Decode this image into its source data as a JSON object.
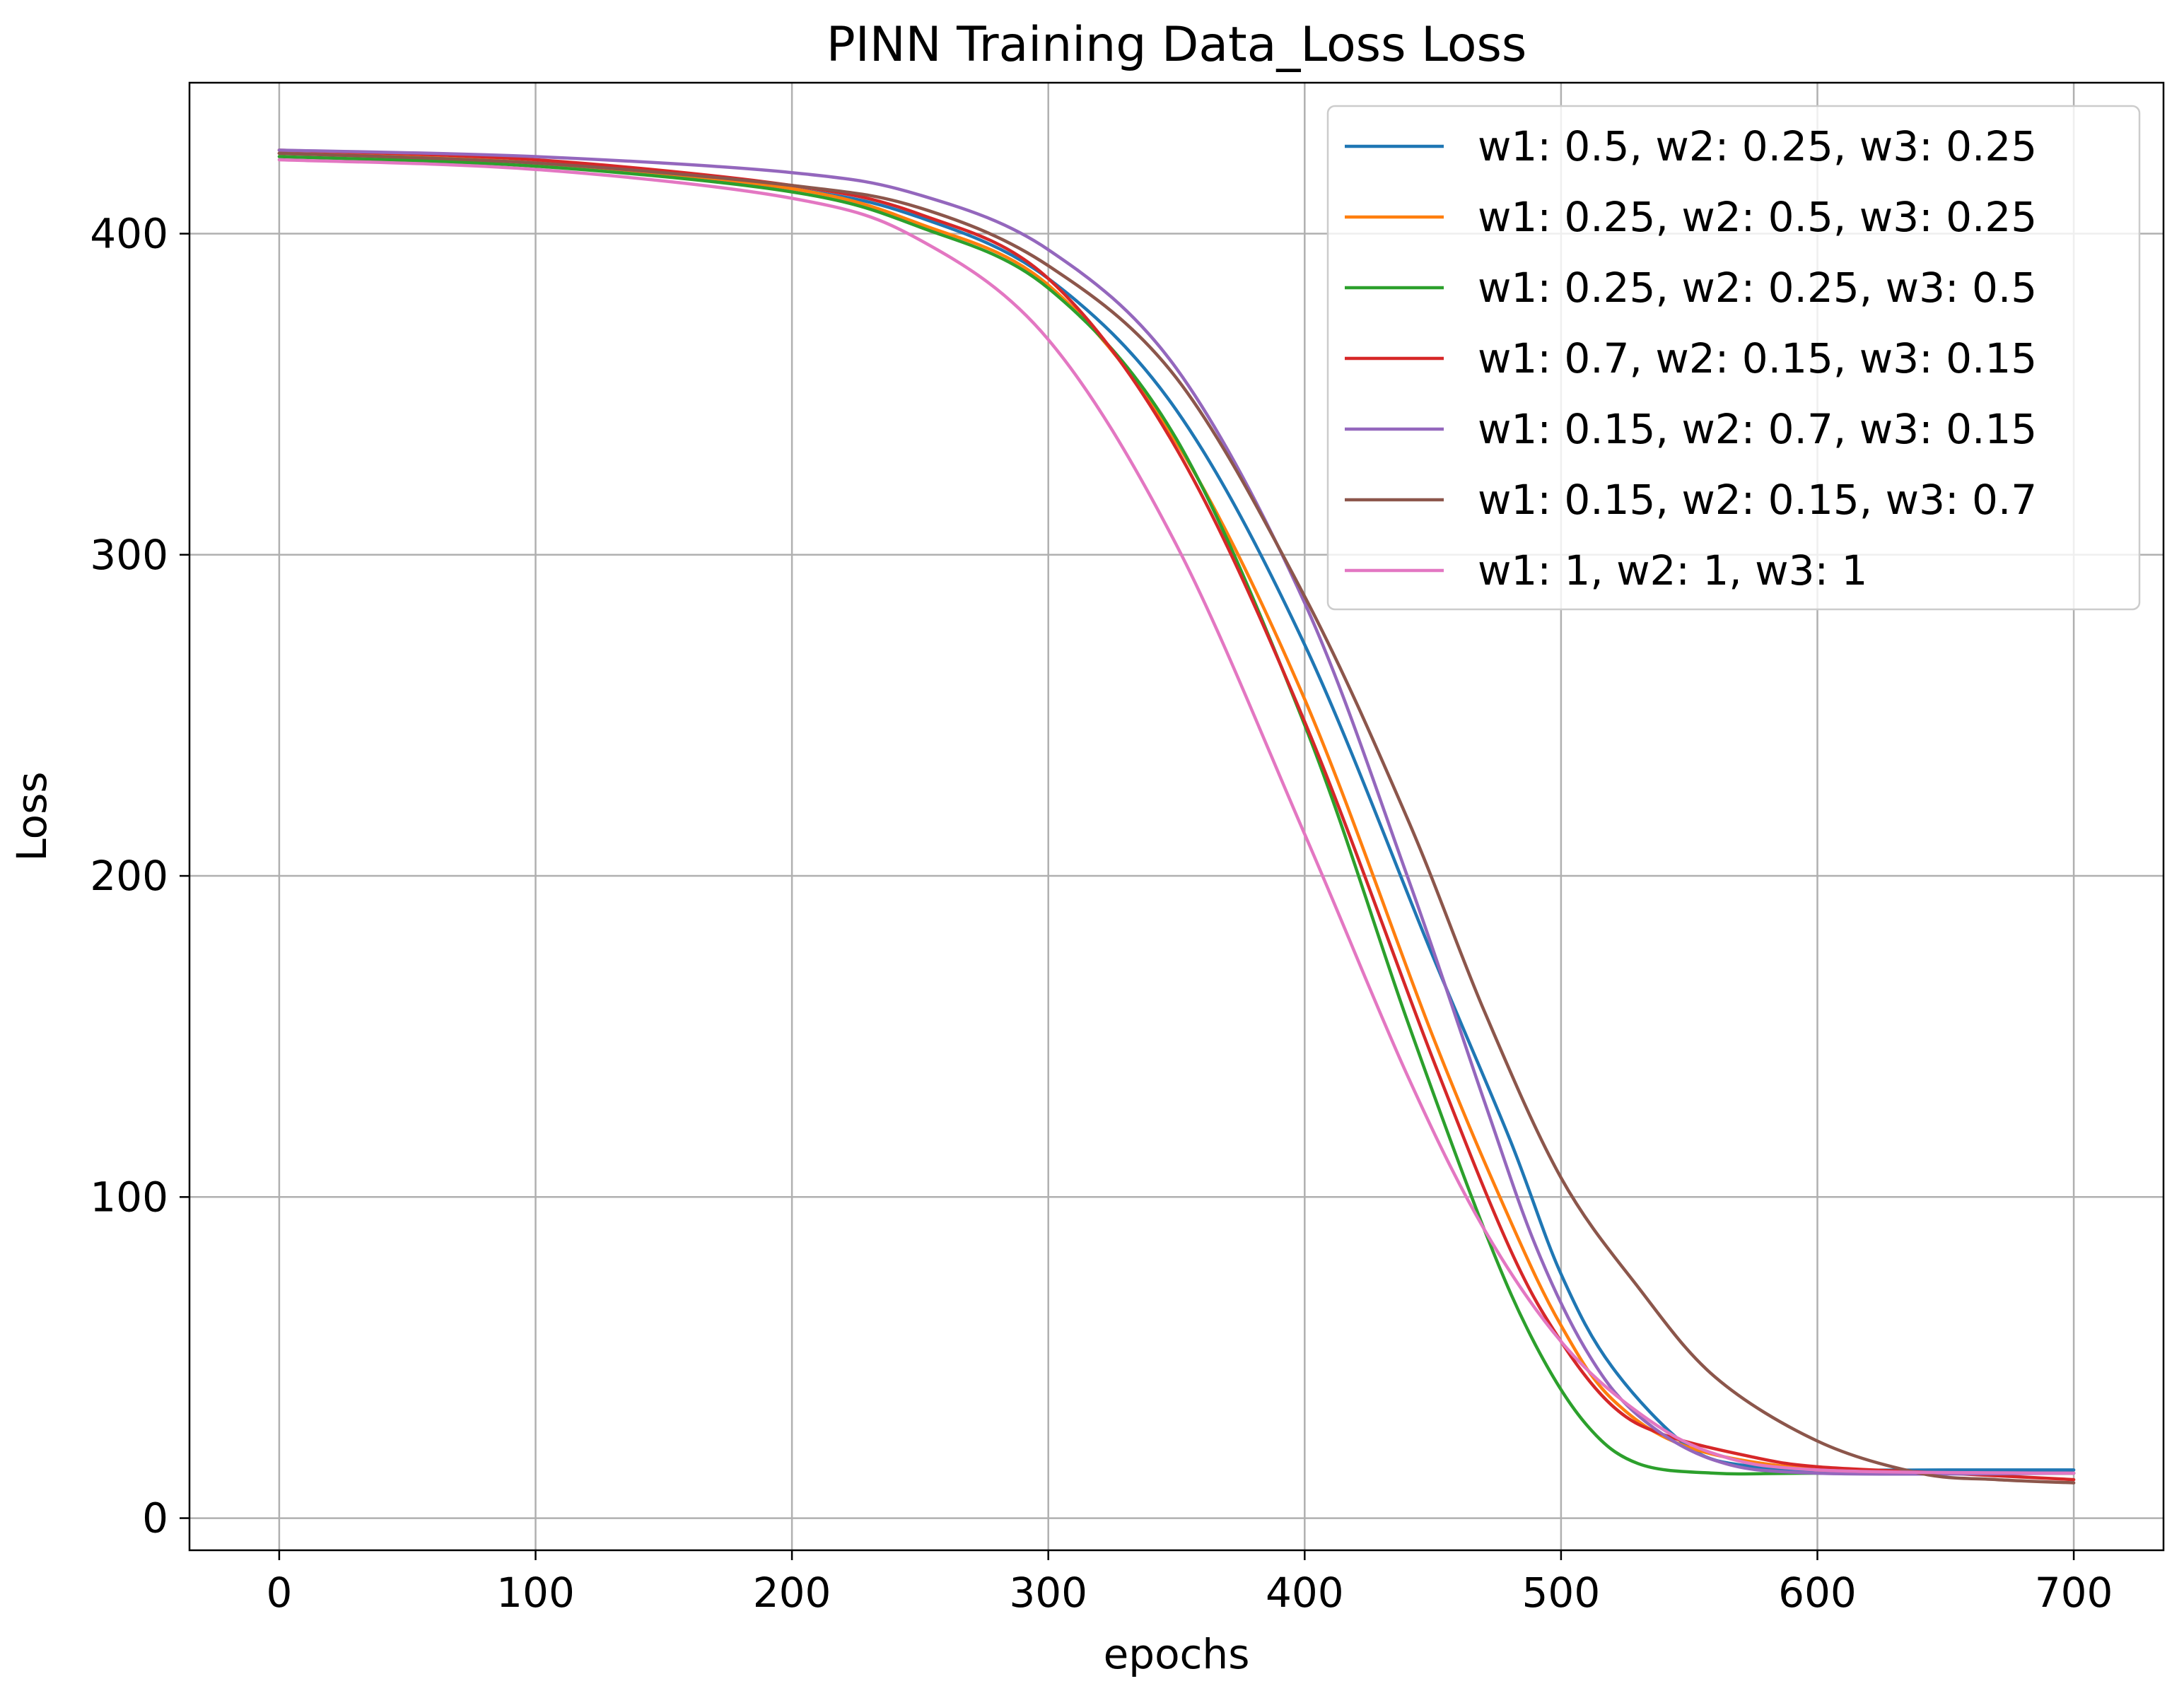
{
  "chart_data": {
    "type": "line",
    "title": "PINN Training Data_Loss Loss",
    "xlabel": "epochs",
    "ylabel": "Loss",
    "xlim": [
      -35,
      735
    ],
    "ylim": [
      -10,
      447
    ],
    "xticks": [
      0,
      100,
      200,
      300,
      400,
      500,
      600,
      700
    ],
    "yticks": [
      0,
      100,
      200,
      300,
      400
    ],
    "grid": true,
    "legend_position": "top-right",
    "series": [
      {
        "name": "w1: 0.5, w2: 0.25, w3: 0.25",
        "color": "#1f77b4",
        "points": [
          [
            0,
            425
          ],
          [
            100,
            422
          ],
          [
            200,
            414
          ],
          [
            250,
            405
          ],
          [
            300,
            386
          ],
          [
            350,
            345
          ],
          [
            400,
            272
          ],
          [
            450,
            175
          ],
          [
            480,
            118
          ],
          [
            500,
            76
          ],
          [
            520,
            47
          ],
          [
            550,
            22
          ],
          [
            575,
            16
          ],
          [
            600,
            15
          ],
          [
            650,
            15
          ],
          [
            700,
            15
          ]
        ]
      },
      {
        "name": "w1: 0.25, w2: 0.5, w3: 0.25",
        "color": "#ff7f0e",
        "points": [
          [
            0,
            425
          ],
          [
            100,
            422
          ],
          [
            200,
            414
          ],
          [
            250,
            403
          ],
          [
            300,
            384
          ],
          [
            350,
            335
          ],
          [
            400,
            255
          ],
          [
            450,
            150
          ],
          [
            480,
            93
          ],
          [
            500,
            60
          ],
          [
            520,
            37
          ],
          [
            550,
            22
          ],
          [
            600,
            15
          ],
          [
            650,
            14
          ],
          [
            700,
            14
          ]
        ]
      },
      {
        "name": "w1: 0.25, w2: 0.25, w3: 0.5",
        "color": "#2ca02c",
        "points": [
          [
            0,
            424
          ],
          [
            100,
            421
          ],
          [
            200,
            413
          ],
          [
            250,
            402
          ],
          [
            300,
            383
          ],
          [
            350,
            336
          ],
          [
            400,
            247
          ],
          [
            440,
            155
          ],
          [
            470,
            90
          ],
          [
            490,
            54
          ],
          [
            510,
            29
          ],
          [
            530,
            17
          ],
          [
            560,
            14
          ],
          [
            600,
            14
          ],
          [
            700,
            14
          ]
        ]
      },
      {
        "name": "w1: 0.7, w2: 0.15, w3: 0.15",
        "color": "#d62728",
        "points": [
          [
            0,
            426
          ],
          [
            100,
            423
          ],
          [
            200,
            415
          ],
          [
            250,
            406
          ],
          [
            300,
            386
          ],
          [
            350,
            333
          ],
          [
            400,
            248
          ],
          [
            450,
            143
          ],
          [
            480,
            84
          ],
          [
            500,
            55
          ],
          [
            520,
            35
          ],
          [
            540,
            26
          ],
          [
            575,
            19
          ],
          [
            600,
            16
          ],
          [
            650,
            14
          ],
          [
            700,
            12
          ]
        ]
      },
      {
        "name": "w1: 0.15, w2: 0.7, w3: 0.15",
        "color": "#9467bd",
        "points": [
          [
            0,
            426
          ],
          [
            100,
            424
          ],
          [
            200,
            419
          ],
          [
            250,
            412
          ],
          [
            300,
            395
          ],
          [
            350,
            358
          ],
          [
            400,
            285
          ],
          [
            440,
            200
          ],
          [
            470,
            130
          ],
          [
            490,
            85
          ],
          [
            510,
            52
          ],
          [
            530,
            32
          ],
          [
            560,
            18
          ],
          [
            600,
            14
          ],
          [
            700,
            14
          ]
        ]
      },
      {
        "name": "w1: 0.15, w2: 0.15, w3: 0.7",
        "color": "#8c564b",
        "points": [
          [
            0,
            425
          ],
          [
            100,
            422
          ],
          [
            200,
            415
          ],
          [
            250,
            408
          ],
          [
            300,
            390
          ],
          [
            350,
            355
          ],
          [
            400,
            287
          ],
          [
            440,
            218
          ],
          [
            470,
            158
          ],
          [
            500,
            106
          ],
          [
            530,
            72
          ],
          [
            560,
            44
          ],
          [
            600,
            24
          ],
          [
            640,
            14
          ],
          [
            670,
            12
          ],
          [
            700,
            11
          ]
        ]
      },
      {
        "name": "w1: 1, w2: 1, w3: 1",
        "color": "#e377c2",
        "points": [
          [
            0,
            423
          ],
          [
            100,
            420
          ],
          [
            200,
            411
          ],
          [
            250,
            398
          ],
          [
            300,
            367
          ],
          [
            350,
            303
          ],
          [
            400,
            213
          ],
          [
            440,
            138
          ],
          [
            470,
            90
          ],
          [
            500,
            55
          ],
          [
            530,
            33
          ],
          [
            560,
            20
          ],
          [
            600,
            15
          ],
          [
            700,
            14
          ]
        ]
      }
    ]
  }
}
